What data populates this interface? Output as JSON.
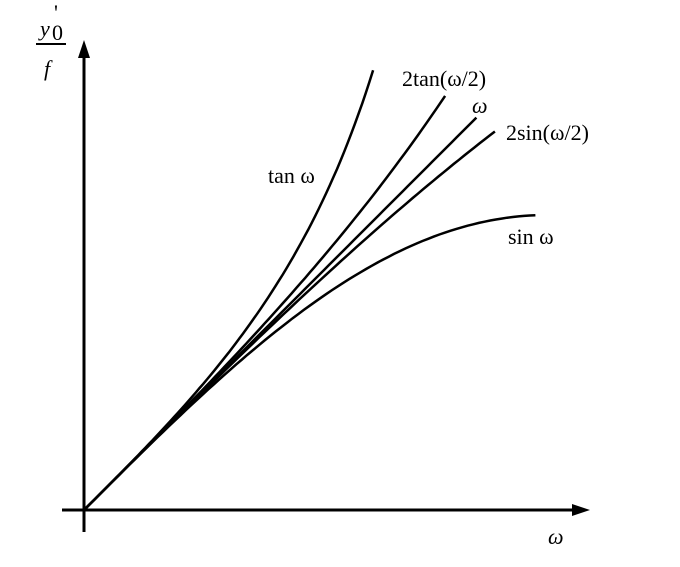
{
  "y_label": {
    "numerator": "y",
    "prime": "'",
    "subscript": "0",
    "denominator": "f"
  },
  "x_label": "ω",
  "curves": [
    {
      "label": "tan ω"
    },
    {
      "label": "2tan(ω/2)"
    },
    {
      "label": "ω"
    },
    {
      "label": "2sin(ω/2)"
    },
    {
      "label": "sin ω"
    }
  ]
}
